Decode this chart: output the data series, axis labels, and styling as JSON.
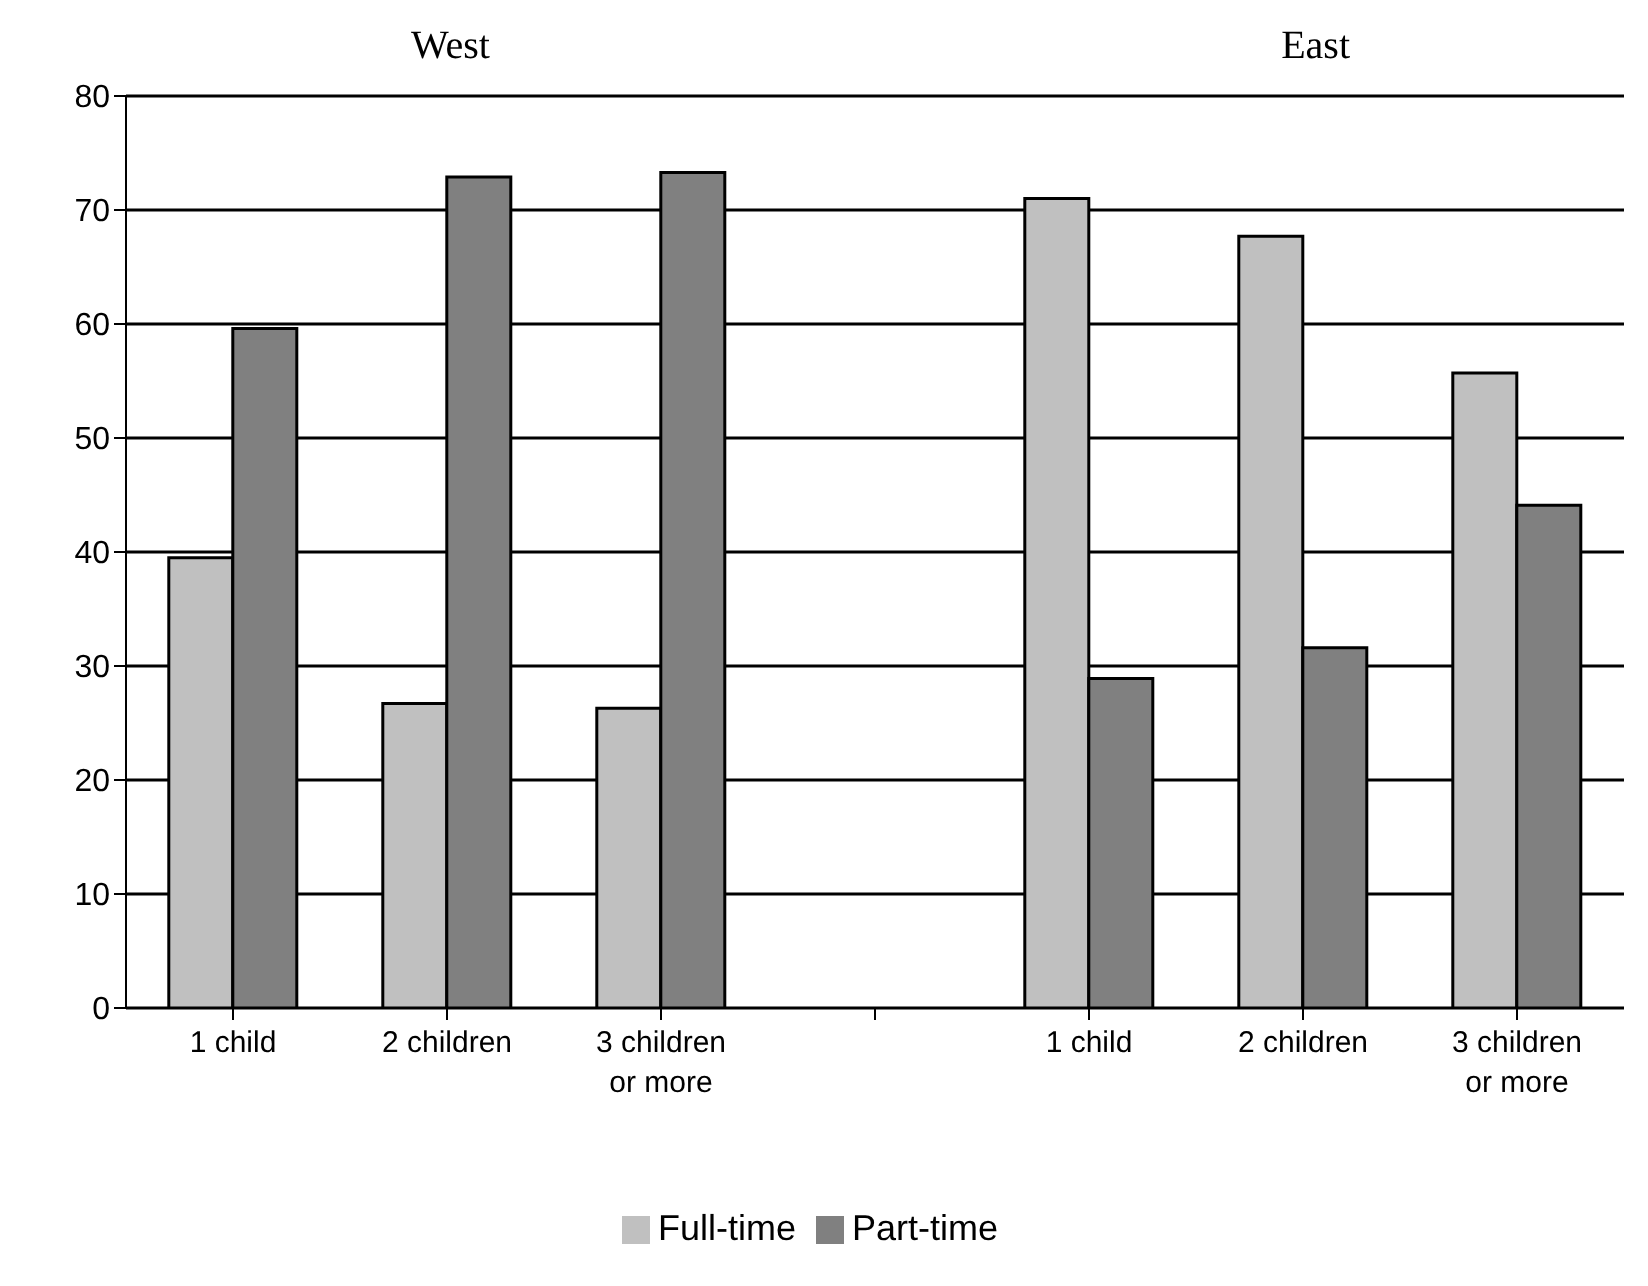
{
  "chart_data": {
    "type": "bar",
    "categories": [
      "1 child",
      "2 children",
      "3 children or more",
      null,
      "1 child",
      "2 children",
      "3 children or more"
    ],
    "series": [
      {
        "name": "Full-time",
        "color": "#c0c0c0",
        "values": [
          39.5,
          26.7,
          26.3,
          null,
          71.0,
          67.7,
          55.7
        ]
      },
      {
        "name": "Part-time",
        "color": "#808080",
        "values": [
          59.6,
          72.9,
          73.3,
          null,
          28.9,
          31.6,
          44.1
        ]
      }
    ],
    "ylim": [
      0,
      80
    ],
    "yticks": [
      0,
      10,
      20,
      30,
      40,
      50,
      60,
      70,
      80
    ],
    "grid": "y",
    "legend": "bottom",
    "annotations": [
      "West",
      "East"
    ]
  }
}
